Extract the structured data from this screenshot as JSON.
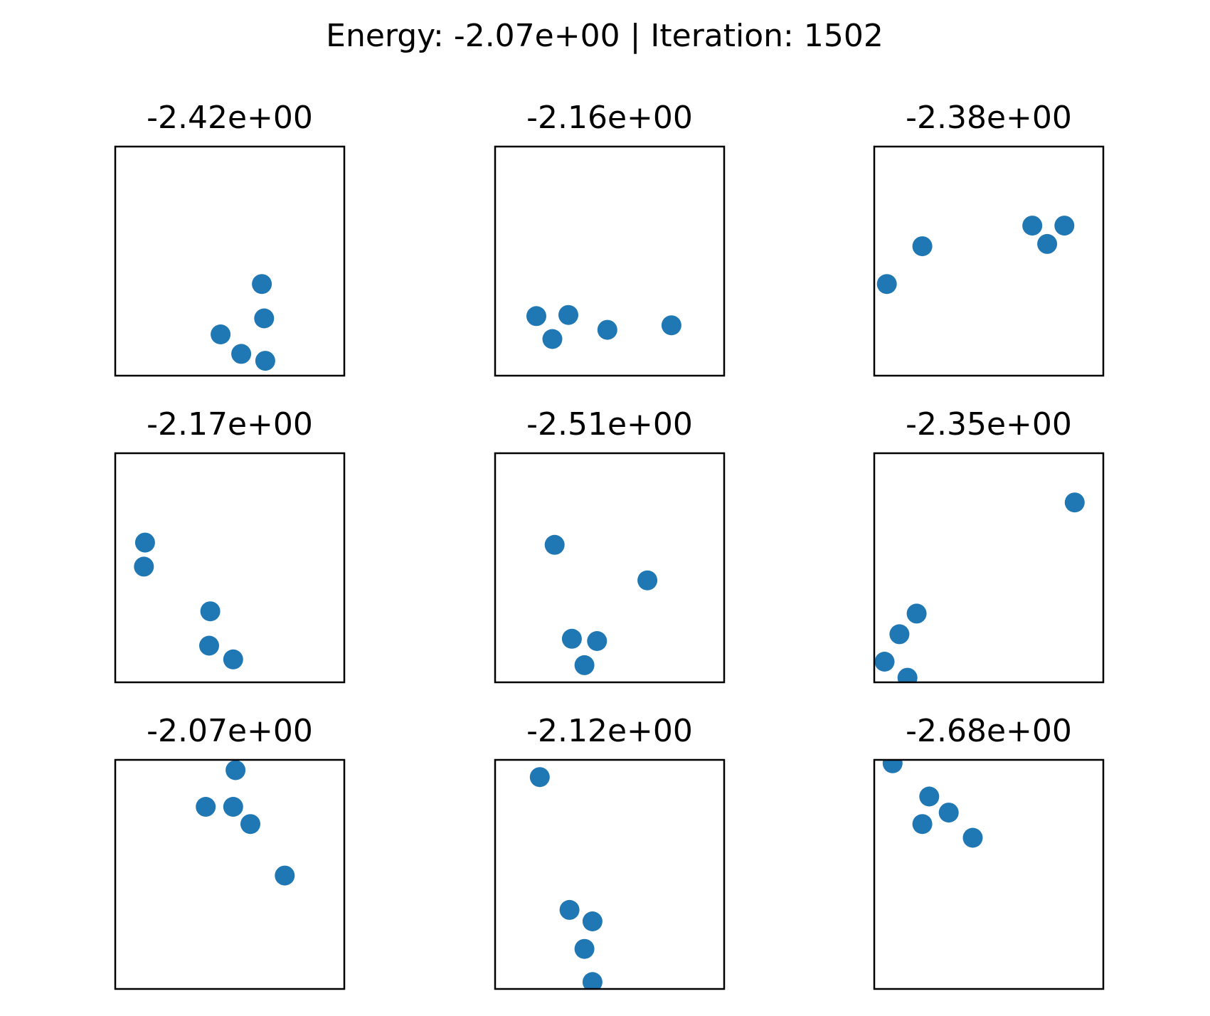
{
  "figure": {
    "suptitle": "Energy: -2.07e+00 | Iteration: 1502",
    "point_color": "#1f77b4",
    "frame_color": "#000000",
    "axes_ticks_visible": false
  },
  "chart_data": [
    {
      "type": "scatter",
      "title": "-2.42e+00",
      "xlim": [
        0,
        1
      ],
      "ylim": [
        0,
        1
      ],
      "grid": false,
      "x": [
        0.64,
        0.65,
        0.46,
        0.55,
        0.655
      ],
      "y": [
        0.4,
        0.25,
        0.18,
        0.095,
        0.065
      ]
    },
    {
      "type": "scatter",
      "title": "-2.16e+00",
      "xlim": [
        0,
        1
      ],
      "ylim": [
        0,
        1
      ],
      "grid": false,
      "x": [
        0.18,
        0.32,
        0.25,
        0.49,
        0.77
      ],
      "y": [
        0.26,
        0.265,
        0.16,
        0.2,
        0.22
      ]
    },
    {
      "type": "scatter",
      "title": "-2.38e+00",
      "xlim": [
        0,
        1
      ],
      "ylim": [
        0,
        1
      ],
      "grid": false,
      "x": [
        0.69,
        0.83,
        0.755,
        0.21,
        0.055
      ],
      "y": [
        0.655,
        0.655,
        0.575,
        0.565,
        0.4
      ]
    },
    {
      "type": "scatter",
      "title": "-2.17e+00",
      "xlim": [
        0,
        1
      ],
      "ylim": [
        0,
        1
      ],
      "grid": false,
      "x": [
        0.13,
        0.125,
        0.415,
        0.41,
        0.515
      ],
      "y": [
        0.61,
        0.505,
        0.31,
        0.16,
        0.1
      ]
    },
    {
      "type": "scatter",
      "title": "-2.51e+00",
      "xlim": [
        0,
        1
      ],
      "ylim": [
        0,
        1
      ],
      "grid": false,
      "x": [
        0.26,
        0.665,
        0.335,
        0.445,
        0.39
      ],
      "y": [
        0.6,
        0.445,
        0.19,
        0.18,
        0.075
      ]
    },
    {
      "type": "scatter",
      "title": "-2.35e+00",
      "xlim": [
        0,
        1
      ],
      "ylim": [
        0,
        1
      ],
      "grid": false,
      "x": [
        0.875,
        0.185,
        0.11,
        0.045,
        0.145
      ],
      "y": [
        0.785,
        0.3,
        0.21,
        0.09,
        0.02
      ]
    },
    {
      "type": "scatter",
      "title": "-2.07e+00",
      "xlim": [
        0,
        1
      ],
      "ylim": [
        0,
        1
      ],
      "grid": false,
      "x": [
        0.525,
        0.395,
        0.515,
        0.59,
        0.74
      ],
      "y": [
        0.955,
        0.795,
        0.795,
        0.72,
        0.495
      ]
    },
    {
      "type": "scatter",
      "title": "-2.12e+00",
      "xlim": [
        0,
        1
      ],
      "ylim": [
        0,
        1
      ],
      "grid": false,
      "x": [
        0.195,
        0.325,
        0.425,
        0.39,
        0.425
      ],
      "y": [
        0.925,
        0.345,
        0.295,
        0.175,
        0.03
      ]
    },
    {
      "type": "scatter",
      "title": "-2.68e+00",
      "xlim": [
        0,
        1
      ],
      "ylim": [
        0,
        1
      ],
      "grid": false,
      "x": [
        0.08,
        0.24,
        0.325,
        0.21,
        0.43
      ],
      "y": [
        0.985,
        0.84,
        0.77,
        0.72,
        0.66
      ]
    }
  ]
}
